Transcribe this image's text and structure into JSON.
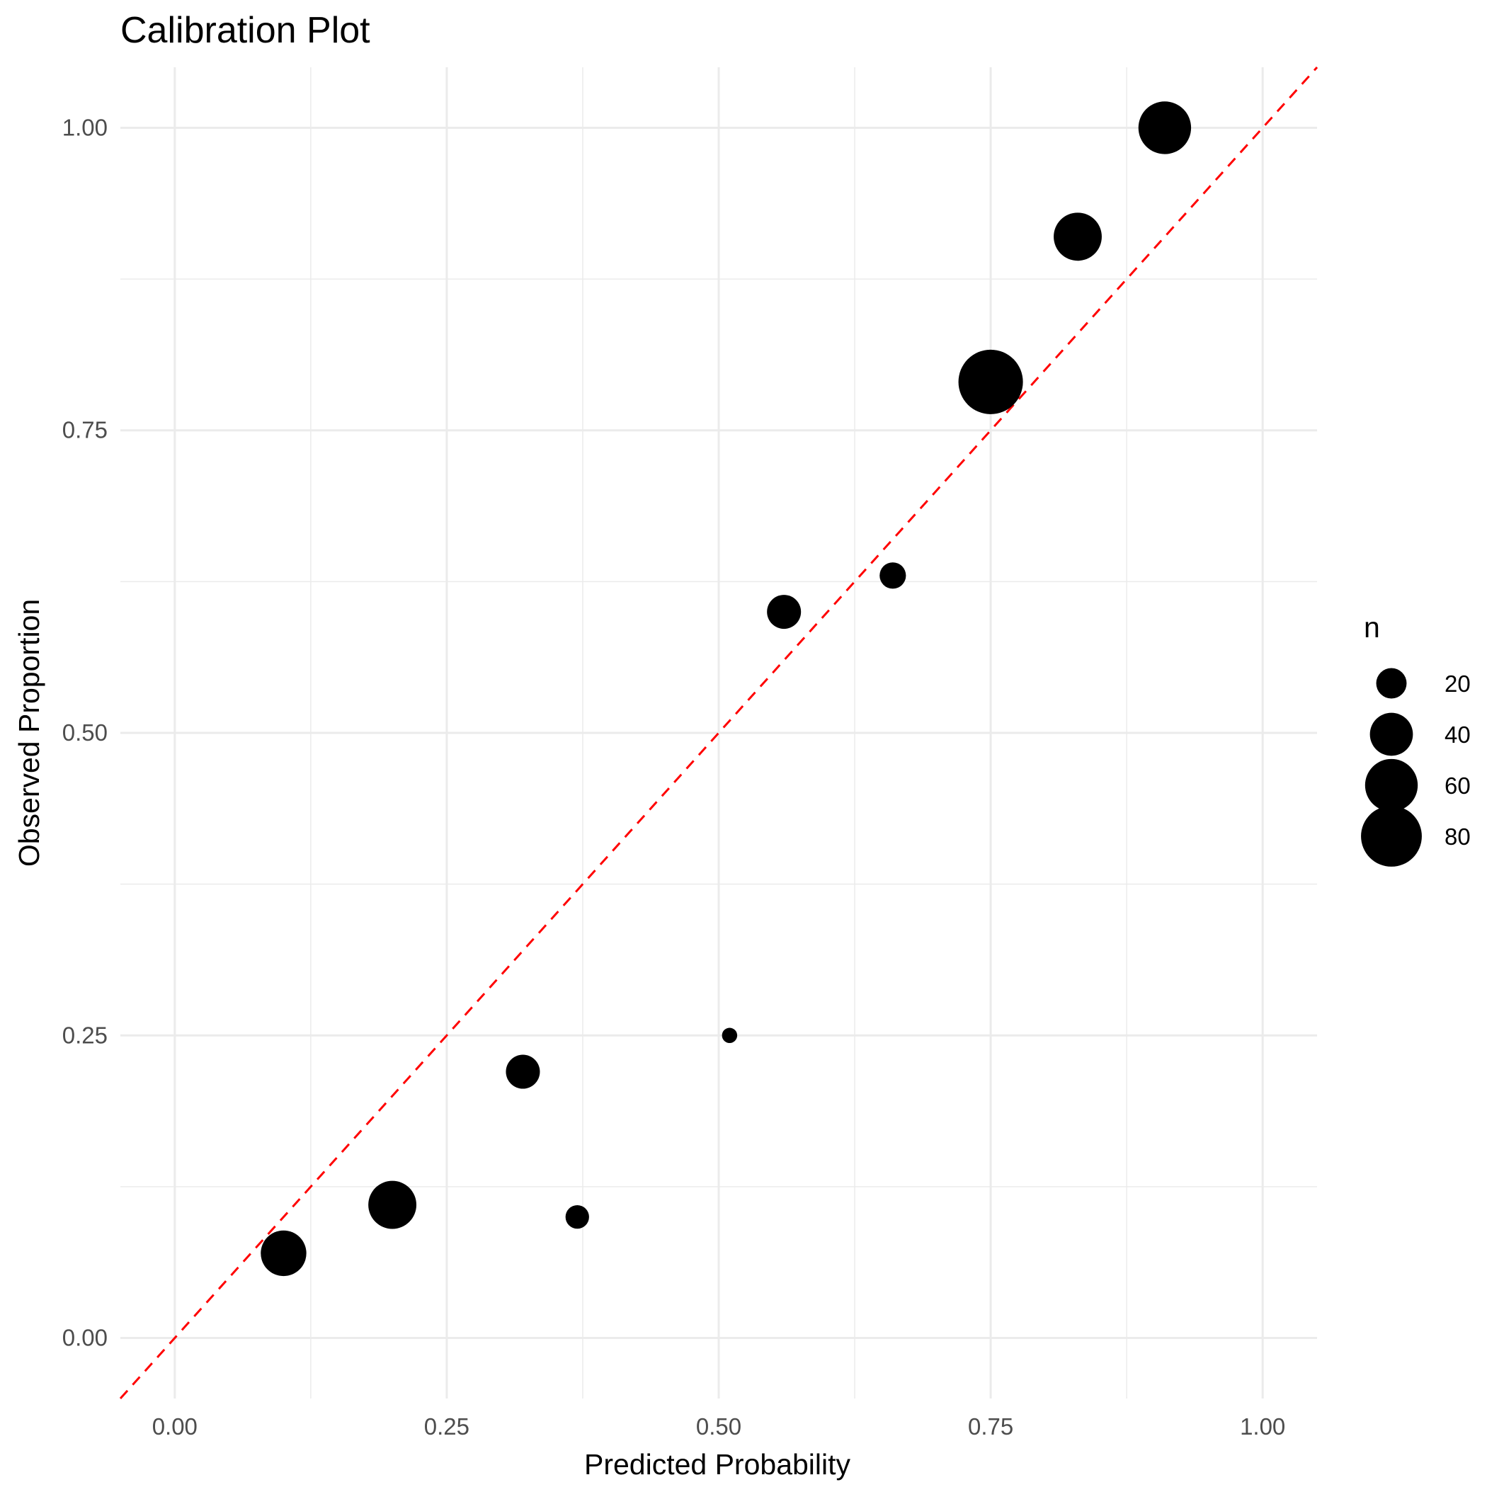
{
  "chart_data": {
    "type": "scatter",
    "title": "Calibration Plot",
    "xlabel": "Predicted Probability",
    "ylabel": "Observed Proportion",
    "xlim": [
      -0.05,
      1.05
    ],
    "ylim": [
      -0.05,
      1.05
    ],
    "x_ticks": [
      0.0,
      0.25,
      0.5,
      0.75,
      1.0
    ],
    "y_ticks": [
      0.0,
      0.25,
      0.5,
      0.75,
      1.0
    ],
    "x_tick_labels": [
      "0.00",
      "0.25",
      "0.50",
      "0.75",
      "1.00"
    ],
    "y_tick_labels": [
      "0.00",
      "0.25",
      "0.50",
      "0.75",
      "1.00"
    ],
    "grid": true,
    "points": [
      {
        "x": 0.1,
        "y": 0.07,
        "n": 45
      },
      {
        "x": 0.2,
        "y": 0.11,
        "n": 50
      },
      {
        "x": 0.32,
        "y": 0.22,
        "n": 25
      },
      {
        "x": 0.37,
        "y": 0.1,
        "n": 12
      },
      {
        "x": 0.51,
        "y": 0.25,
        "n": 5
      },
      {
        "x": 0.56,
        "y": 0.6,
        "n": 25
      },
      {
        "x": 0.66,
        "y": 0.63,
        "n": 15
      },
      {
        "x": 0.75,
        "y": 0.79,
        "n": 90
      },
      {
        "x": 0.83,
        "y": 0.91,
        "n": 50
      },
      {
        "x": 0.91,
        "y": 1.0,
        "n": 60
      }
    ],
    "reference_line": {
      "type": "diagonal",
      "slope": 1,
      "intercept": 0,
      "color": "#ff0000",
      "style": "dashed"
    },
    "point_color": "#000000",
    "legend": {
      "title": "n",
      "position": "right",
      "values": [
        20,
        40,
        60,
        80
      ],
      "labels": [
        "20",
        "40",
        "60",
        "80"
      ]
    }
  }
}
